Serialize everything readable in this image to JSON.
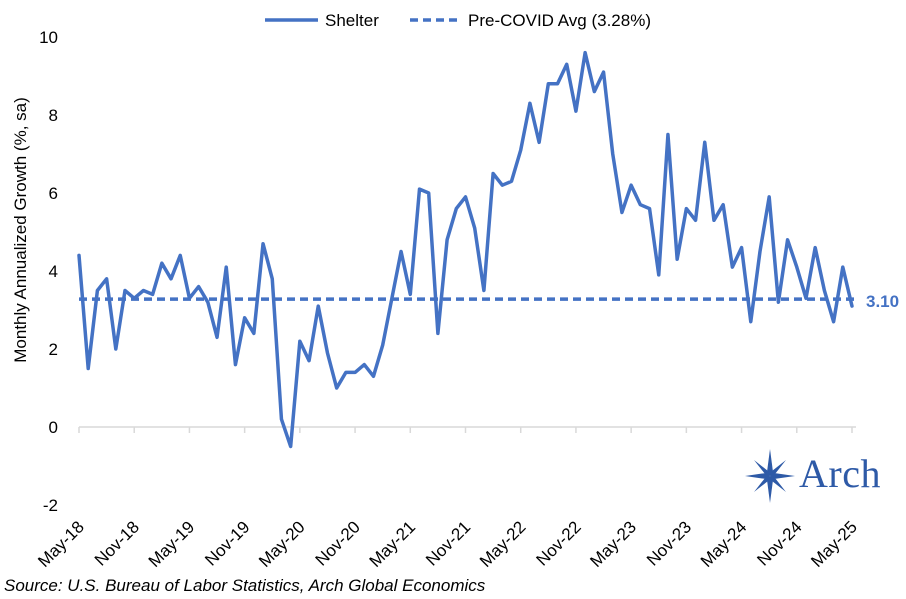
{
  "chart_data": {
    "type": "line",
    "title": "",
    "ylabel": "Monthly Annualized Growth (%, sa)",
    "xlabel": "",
    "ylim": [
      -2,
      10
    ],
    "yticks": [
      -2,
      0,
      2,
      4,
      6,
      8,
      10
    ],
    "x_tick_labels": [
      "May-18",
      "Nov-18",
      "May-19",
      "Nov-19",
      "May-20",
      "Nov-20",
      "May-21",
      "Nov-21",
      "May-22",
      "Nov-22",
      "May-23",
      "Nov-23",
      "May-24",
      "Nov-24",
      "May-25"
    ],
    "grid": false,
    "legend_position": "top",
    "x": [
      "May-18",
      "Jun-18",
      "Jul-18",
      "Aug-18",
      "Sep-18",
      "Oct-18",
      "Nov-18",
      "Dec-18",
      "Jan-19",
      "Feb-19",
      "Mar-19",
      "Apr-19",
      "May-19",
      "Jun-19",
      "Jul-19",
      "Aug-19",
      "Sep-19",
      "Oct-19",
      "Nov-19",
      "Dec-19",
      "Jan-20",
      "Feb-20",
      "Mar-20",
      "Apr-20",
      "May-20",
      "Jun-20",
      "Jul-20",
      "Aug-20",
      "Sep-20",
      "Oct-20",
      "Nov-20",
      "Dec-20",
      "Jan-21",
      "Feb-21",
      "Mar-21",
      "Apr-21",
      "May-21",
      "Jun-21",
      "Jul-21",
      "Aug-21",
      "Sep-21",
      "Oct-21",
      "Nov-21",
      "Dec-21",
      "Jan-22",
      "Feb-22",
      "Mar-22",
      "Apr-22",
      "May-22",
      "Jun-22",
      "Jul-22",
      "Aug-22",
      "Sep-22",
      "Oct-22",
      "Nov-22",
      "Dec-22",
      "Jan-23",
      "Feb-23",
      "Mar-23",
      "Apr-23",
      "May-23",
      "Jun-23",
      "Jul-23",
      "Aug-23",
      "Sep-23",
      "Oct-23",
      "Nov-23",
      "Dec-23",
      "Jan-24",
      "Feb-24",
      "Mar-24",
      "Apr-24",
      "May-24",
      "Jun-24",
      "Jul-24",
      "Aug-24",
      "Sep-24",
      "Oct-24",
      "Nov-24",
      "Dec-24",
      "Jan-25",
      "Feb-25",
      "Mar-25",
      "Apr-25",
      "May-25"
    ],
    "series": [
      {
        "name": "Shelter",
        "style": "solid",
        "color": "#4472C4",
        "values": [
          4.4,
          1.5,
          3.5,
          3.8,
          2.0,
          3.5,
          3.3,
          3.5,
          3.4,
          4.2,
          3.8,
          4.4,
          3.3,
          3.6,
          3.2,
          2.3,
          4.1,
          1.6,
          2.8,
          2.4,
          4.7,
          3.8,
          0.2,
          -0.5,
          2.2,
          1.7,
          3.1,
          1.9,
          1.0,
          1.4,
          1.4,
          1.6,
          1.3,
          2.1,
          3.3,
          4.5,
          3.4,
          6.1,
          6.0,
          2.4,
          4.8,
          5.6,
          5.9,
          5.1,
          3.5,
          6.5,
          6.2,
          6.3,
          7.1,
          8.3,
          7.3,
          8.8,
          8.8,
          9.3,
          8.1,
          9.6,
          8.6,
          9.1,
          7.0,
          5.5,
          6.2,
          5.7,
          5.6,
          3.9,
          7.5,
          4.3,
          5.6,
          5.3,
          7.3,
          5.3,
          5.7,
          4.1,
          4.6,
          2.7,
          4.5,
          5.9,
          3.2,
          4.8,
          4.1,
          3.3,
          4.6,
          3.5,
          2.7,
          4.1,
          3.1
        ]
      },
      {
        "name": "Pre-COVID Avg (3.28%)",
        "style": "dashed",
        "color": "#4472C4",
        "constant": 3.28
      }
    ],
    "annotations": [
      {
        "text": "3.10",
        "x": "May-25",
        "y": 3.1
      }
    ]
  },
  "source_text": "Source: U.S. Bureau of Labor Statistics, Arch Global Economics",
  "logo": {
    "text": "Arch",
    "color": "#2E5AA7"
  }
}
